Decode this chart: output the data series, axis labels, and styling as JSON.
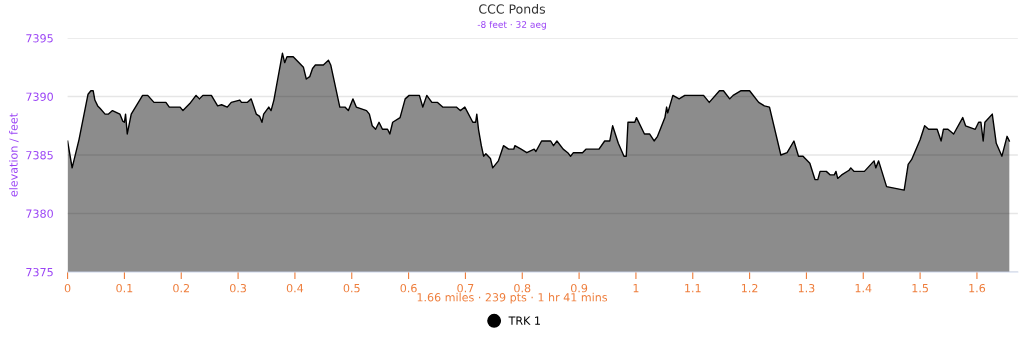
{
  "chart_data": {
    "type": "area",
    "title": "CCC Ponds",
    "subtitle": "-8 feet · 32 aeg",
    "ylabel": "elevation / feet",
    "annotations": [
      "1.66 miles · 239 pts · 1 hr 41 mins"
    ],
    "xlim": [
      0,
      1.672
    ],
    "xticks": [
      0,
      0.1,
      0.2,
      0.3,
      0.4,
      0.5,
      0.6,
      0.7,
      0.8,
      0.9,
      1,
      1.1,
      1.2,
      1.3,
      1.4,
      1.5,
      1.6
    ],
    "ylim": [
      7375,
      7395
    ],
    "yticks": [
      7375,
      7380,
      7385,
      7390,
      7395
    ],
    "grid": "y",
    "legend": "bottom",
    "marker": "none",
    "series": [
      {
        "name": "TRK 1",
        "color": "#000000",
        "x": [
          0,
          0.008,
          0.02,
          0.036,
          0.041,
          0.045,
          0.048,
          0.053,
          0.057,
          0.066,
          0.072,
          0.079,
          0.092,
          0.097,
          0.1,
          0.102,
          0.105,
          0.112,
          0.132,
          0.141,
          0.152,
          0.173,
          0.179,
          0.198,
          0.203,
          0.215,
          0.226,
          0.232,
          0.238,
          0.253,
          0.264,
          0.271,
          0.281,
          0.288,
          0.303,
          0.306,
          0.316,
          0.323,
          0.332,
          0.338,
          0.342,
          0.345,
          0.354,
          0.358,
          0.363,
          0.378,
          0.382,
          0.386,
          0.397,
          0.415,
          0.42,
          0.426,
          0.431,
          0.436,
          0.45,
          0.459,
          0.463,
          0.479,
          0.488,
          0.494,
          0.502,
          0.508,
          0.526,
          0.531,
          0.536,
          0.542,
          0.548,
          0.554,
          0.563,
          0.567,
          0.572,
          0.585,
          0.594,
          0.601,
          0.619,
          0.625,
          0.632,
          0.641,
          0.651,
          0.66,
          0.684,
          0.691,
          0.699,
          0.713,
          0.718,
          0.72,
          0.723,
          0.728,
          0.732,
          0.736,
          0.744,
          0.748,
          0.758,
          0.767,
          0.776,
          0.785,
          0.787,
          0.798,
          0.808,
          0.821,
          0.824,
          0.834,
          0.85,
          0.855,
          0.861,
          0.872,
          0.88,
          0.885,
          0.89,
          0.906,
          0.912,
          0.935,
          0.945,
          0.954,
          0.959,
          0.969,
          0.979,
          0.983,
          0.986,
          0.998,
          1.001,
          1.015,
          1.024,
          1.032,
          1.038,
          1.051,
          1.054,
          1.056,
          1.065,
          1.076,
          1.086,
          1.119,
          1.129,
          1.147,
          1.154,
          1.165,
          1.171,
          1.185,
          1.2,
          1.216,
          1.226,
          1.235,
          1.255,
          1.266,
          1.278,
          1.286,
          1.294,
          1.306,
          1.315,
          1.32,
          1.324,
          1.335,
          1.342,
          1.349,
          1.352,
          1.355,
          1.362,
          1.375,
          1.378,
          1.384,
          1.402,
          1.419,
          1.422,
          1.427,
          1.441,
          1.472,
          1.479,
          1.485,
          1.5,
          1.508,
          1.515,
          1.53,
          1.537,
          1.541,
          1.549,
          1.559,
          1.575,
          1.58,
          1.597,
          1.603,
          1.607,
          1.611,
          1.614,
          1.627,
          1.634,
          1.644,
          1.653,
          1.657
        ],
        "values": [
          7386.2,
          7383.9,
          7386.3,
          7390.2,
          7390.5,
          7390.5,
          7389.7,
          7389.2,
          7389.0,
          7388.5,
          7388.5,
          7388.8,
          7388.5,
          7387.9,
          7387.8,
          7388.5,
          7386.8,
          7388.5,
          7390.1,
          7390.1,
          7389.5,
          7389.5,
          7389.1,
          7389.1,
          7388.8,
          7389.4,
          7390.1,
          7389.8,
          7390.1,
          7390.1,
          7389.2,
          7389.3,
          7389.1,
          7389.5,
          7389.7,
          7389.5,
          7389.5,
          7389.8,
          7388.5,
          7388.3,
          7387.8,
          7388.5,
          7389.1,
          7388.8,
          7389.7,
          7393.7,
          7392.9,
          7393.4,
          7393.4,
          7392.5,
          7391.5,
          7391.7,
          7392.4,
          7392.7,
          7392.7,
          7393.1,
          7392.7,
          7389.1,
          7389.1,
          7388.8,
          7389.8,
          7389.1,
          7388.8,
          7388.5,
          7387.5,
          7387.2,
          7387.8,
          7387.2,
          7387.2,
          7386.8,
          7387.8,
          7388.2,
          7389.8,
          7390.1,
          7390.1,
          7389.1,
          7390.1,
          7389.5,
          7389.5,
          7389.1,
          7389.1,
          7388.8,
          7389.1,
          7387.8,
          7387.8,
          7388.5,
          7387.2,
          7385.8,
          7384.9,
          7385.1,
          7384.7,
          7383.9,
          7384.5,
          7385.8,
          7385.5,
          7385.5,
          7385.8,
          7385.5,
          7385.2,
          7385.5,
          7385.3,
          7386.2,
          7386.2,
          7385.8,
          7386.2,
          7385.5,
          7385.2,
          7384.9,
          7385.2,
          7385.2,
          7385.5,
          7385.5,
          7386.2,
          7386.2,
          7387.5,
          7386.0,
          7384.9,
          7384.9,
          7387.8,
          7387.8,
          7388.2,
          7386.8,
          7386.8,
          7386.2,
          7386.6,
          7388.2,
          7389.1,
          7388.6,
          7390.1,
          7389.8,
          7390.1,
          7390.1,
          7389.5,
          7390.5,
          7390.5,
          7389.8,
          7390.1,
          7390.5,
          7390.5,
          7389.5,
          7389.2,
          7389.1,
          7385.0,
          7385.2,
          7386.2,
          7384.9,
          7384.9,
          7384.3,
          7382.9,
          7382.9,
          7383.6,
          7383.6,
          7383.3,
          7383.3,
          7383.6,
          7383.0,
          7383.3,
          7383.7,
          7383.9,
          7383.6,
          7383.6,
          7384.5,
          7383.9,
          7384.5,
          7382.3,
          7382.0,
          7384.2,
          7384.6,
          7386.3,
          7387.5,
          7387.2,
          7387.2,
          7386.2,
          7387.2,
          7387.2,
          7386.8,
          7388.2,
          7387.5,
          7387.2,
          7387.8,
          7387.8,
          7386.2,
          7387.8,
          7388.5,
          7386.0,
          7384.9,
          7386.6,
          7386.2
        ]
      }
    ]
  }
}
